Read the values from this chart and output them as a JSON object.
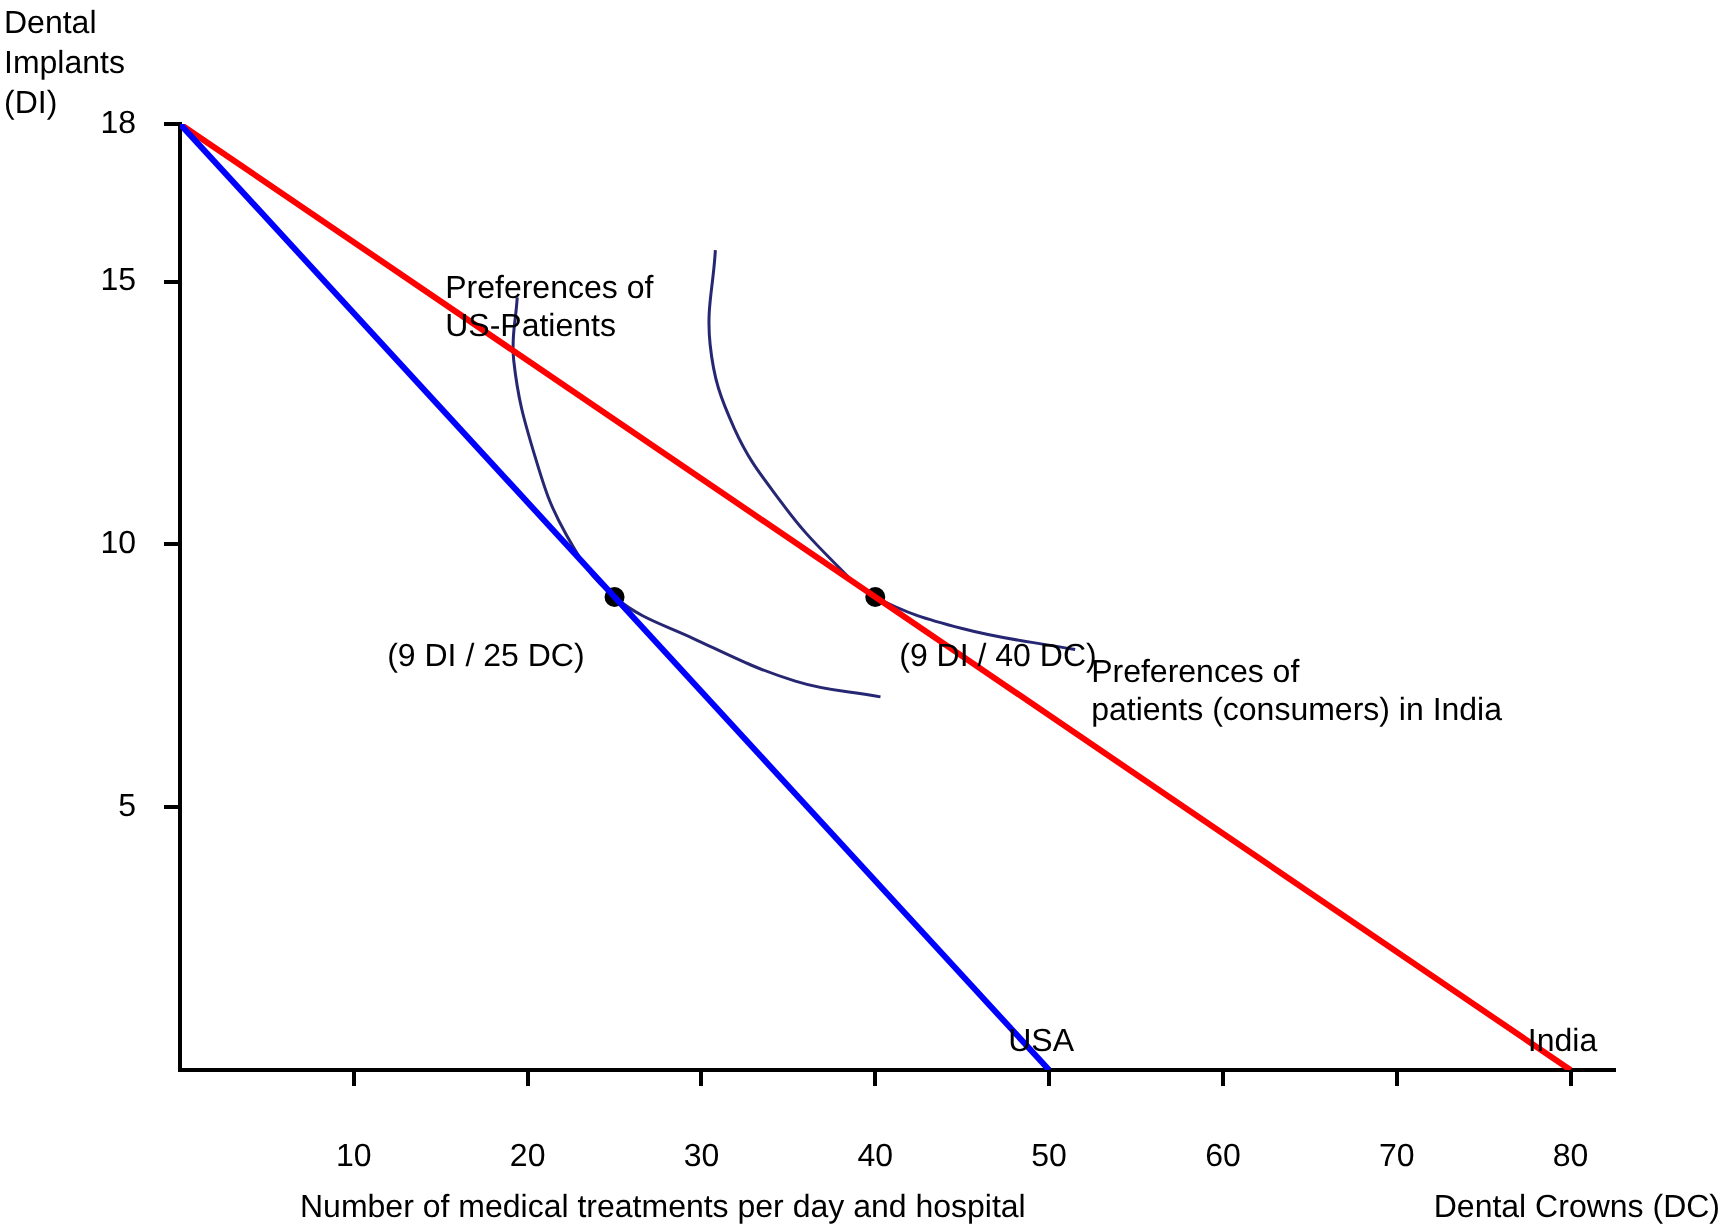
{
  "chart_data": {
    "type": "line",
    "xlabel": "Dental Crowns (DC)",
    "ylabel": "Dental Implants (DI)",
    "xlim": [
      0,
      82.5
    ],
    "ylim": [
      0,
      18
    ],
    "xticks": [
      10,
      20,
      30,
      40,
      50,
      60,
      70,
      80
    ],
    "yticks": [
      5,
      10,
      15,
      18
    ],
    "grid": false,
    "legend": false,
    "series": [
      {
        "name": "USA",
        "color": "#0000ff",
        "x": [
          0,
          50
        ],
        "values": [
          18,
          0
        ]
      },
      {
        "name": "India",
        "color": "#ff0000",
        "x": [
          0,
          80
        ],
        "values": [
          18,
          0
        ]
      },
      {
        "name": "Preferences of\nUS-Patients",
        "color": "#262673",
        "x": [
          19.4,
          19.2,
          20.4,
          22.2,
          25,
          29.6,
          35.4,
          40.3
        ],
        "values": [
          14.7,
          13.5,
          11.7,
          10.2,
          9,
          8.2,
          7.4,
          7.1
        ]
      },
      {
        "name": "Preferences of\npatients (consumers) in India",
        "color": "#262673",
        "x": [
          30.8,
          30.5,
          31.9,
          34.6,
          37.5,
          40,
          45,
          51.5
        ],
        "values": [
          15.6,
          13.8,
          12.2,
          10.8,
          9.7,
          9,
          8.4,
          8
        ]
      },
      {
        "type": "scatter",
        "color": "#000000",
        "marker": "circle",
        "x": [
          25,
          40
        ],
        "values": [
          9,
          9
        ]
      }
    ],
    "annotations": [
      {
        "text": "(9 DI / 25 DC)",
        "x": 25,
        "y": 9
      },
      {
        "text": "(9 DI / 40 DC)",
        "x": 40,
        "y": 9
      },
      "Number of medical treatments per day and hospital"
    ]
  }
}
